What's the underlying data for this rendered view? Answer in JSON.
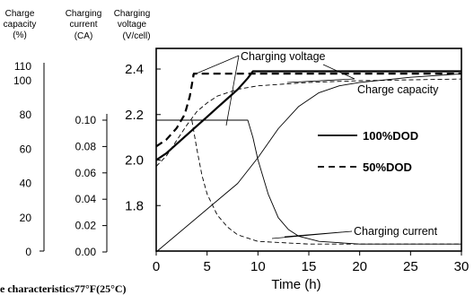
{
  "headers": {
    "capacity": [
      "Charge",
      "capacity",
      "(%)"
    ],
    "current": [
      "Charging",
      "current",
      "(CA)"
    ],
    "voltage": [
      "Charging",
      "voltage",
      "(V/cell)"
    ]
  },
  "caption": "e characteristics77°F(25°C)",
  "chart_data": {
    "type": "line",
    "xlabel": "Time (h)",
    "xlim": [
      0,
      30
    ],
    "x_ticks": [
      "0",
      "5",
      "10",
      "15",
      "20",
      "25",
      "30"
    ],
    "axes": {
      "voltage": {
        "label": "Charging voltage (V/cell)",
        "ylim": [
          1.6,
          2.5
        ],
        "ticks": [
          "1.8",
          "2.0",
          "2.2",
          "2.4"
        ]
      },
      "current": {
        "label": "Charging current (CA)",
        "ylim": [
          0.0,
          0.1
        ],
        "ticks": [
          "0.00",
          "0.02",
          "0.04",
          "0.06",
          "0.08",
          "0.10"
        ]
      },
      "capacity": {
        "label": "Charge capacity (%)",
        "ylim": [
          0,
          110
        ],
        "ticks": [
          "0",
          "20",
          "40",
          "60",
          "80",
          "100",
          "110"
        ]
      }
    },
    "legend": [
      {
        "label": "100%DOD",
        "style": "solid"
      },
      {
        "label": "50%DOD",
        "style": "dashed"
      }
    ],
    "annotations": [
      "Charging voltage",
      "Charge capacity",
      "Charging current"
    ],
    "series": [
      {
        "name": "100%DOD",
        "quantity": "Charging voltage",
        "axis": "voltage",
        "style": "solid",
        "weight": "bold",
        "points": [
          [
            0,
            2.0
          ],
          [
            1,
            2.03
          ],
          [
            2,
            2.07
          ],
          [
            3,
            2.11
          ],
          [
            4,
            2.15
          ],
          [
            5,
            2.19
          ],
          [
            6,
            2.23
          ],
          [
            7,
            2.27
          ],
          [
            8,
            2.31
          ],
          [
            9,
            2.36
          ],
          [
            9.5,
            2.39
          ],
          [
            10,
            2.39
          ],
          [
            30,
            2.39
          ]
        ]
      },
      {
        "name": "50%DOD",
        "quantity": "Charging voltage",
        "axis": "voltage",
        "style": "dashed",
        "weight": "bold",
        "points": [
          [
            0,
            2.06
          ],
          [
            1,
            2.09
          ],
          [
            2,
            2.14
          ],
          [
            2.8,
            2.2
          ],
          [
            3.3,
            2.28
          ],
          [
            3.7,
            2.38
          ],
          [
            4,
            2.38
          ],
          [
            30,
            2.38
          ]
        ]
      },
      {
        "name": "100%DOD",
        "quantity": "Charge capacity",
        "axis": "capacity",
        "style": "solid",
        "weight": "thin",
        "points": [
          [
            0,
            0
          ],
          [
            8,
            40
          ],
          [
            10,
            55
          ],
          [
            12,
            72
          ],
          [
            14,
            85
          ],
          [
            16,
            93
          ],
          [
            18,
            97
          ],
          [
            20,
            99
          ],
          [
            25,
            102
          ],
          [
            30,
            104
          ]
        ]
      },
      {
        "name": "50%DOD",
        "quantity": "Charge capacity",
        "axis": "capacity",
        "style": "dashed",
        "weight": "thin",
        "points": [
          [
            0,
            50
          ],
          [
            1,
            56
          ],
          [
            2,
            65
          ],
          [
            3,
            74
          ],
          [
            4,
            82
          ],
          [
            5,
            87
          ],
          [
            6,
            91
          ],
          [
            8,
            95
          ],
          [
            10,
            97
          ],
          [
            15,
            99
          ],
          [
            20,
            100
          ],
          [
            30,
            101
          ]
        ]
      },
      {
        "name": "100%DOD",
        "quantity": "Charging current",
        "axis": "current",
        "style": "solid",
        "weight": "thin",
        "points": [
          [
            0,
            0.1
          ],
          [
            9,
            0.1
          ],
          [
            9.5,
            0.087
          ],
          [
            10,
            0.07
          ],
          [
            11,
            0.044
          ],
          [
            12,
            0.026
          ],
          [
            13,
            0.017
          ],
          [
            14,
            0.012
          ],
          [
            16,
            0.008
          ],
          [
            20,
            0.006
          ],
          [
            25,
            0.006
          ],
          [
            30,
            0.006
          ]
        ]
      },
      {
        "name": "50%DOD",
        "quantity": "Charging current",
        "axis": "current",
        "style": "dashed",
        "weight": "thin",
        "points": [
          [
            0,
            0.1
          ],
          [
            3.5,
            0.1
          ],
          [
            4,
            0.078
          ],
          [
            4.5,
            0.058
          ],
          [
            5,
            0.044
          ],
          [
            6,
            0.028
          ],
          [
            7,
            0.019
          ],
          [
            8,
            0.013
          ],
          [
            10,
            0.008
          ],
          [
            15,
            0.006
          ],
          [
            30,
            0.006
          ]
        ]
      }
    ]
  }
}
